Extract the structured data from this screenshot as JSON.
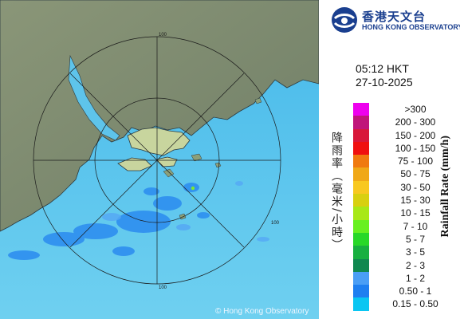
{
  "logo": {
    "name_cn": "香港天文台",
    "name_en": "HONG KONG OBSERVATORY"
  },
  "timestamp": {
    "time": "05:12 HKT",
    "date": "27-10-2025"
  },
  "legend": {
    "title_cn": "降雨率（毫米/小時）",
    "title_en": "Rainfall Rate (mm/h)",
    "items": [
      {
        "label": ">300",
        "color": "#ee00ee"
      },
      {
        "label": "200 - 300",
        "color": "#c0157a"
      },
      {
        "label": "150 - 200",
        "color": "#d8183a"
      },
      {
        "label": "100 - 150",
        "color": "#f01010"
      },
      {
        "label": "75 - 100",
        "color": "#f07a10"
      },
      {
        "label": "50 - 75",
        "color": "#f0a818"
      },
      {
        "label": "30 - 50",
        "color": "#f8c820"
      },
      {
        "label": "15 - 30",
        "color": "#d8d010"
      },
      {
        "label": "10 - 15",
        "color": "#a8e818"
      },
      {
        "label": "7 - 10",
        "color": "#68f020"
      },
      {
        "label": "5 - 7",
        "color": "#28d828"
      },
      {
        "label": "3 - 5",
        "color": "#18b040"
      },
      {
        "label": "2 - 3",
        "color": "#108850"
      },
      {
        "label": "1 - 2",
        "color": "#4a9ef5"
      },
      {
        "label": "0.50 - 1",
        "color": "#1e7ff0"
      },
      {
        "label": "0.15 - 0.50",
        "color": "#0ac6f2"
      }
    ]
  },
  "map": {
    "range_ring_labels": [
      "100",
      "100",
      "100"
    ],
    "copyright": "© Hong Kong Observatory",
    "colors": {
      "sea": "#5fc8ec",
      "land": "#7d8a70",
      "hk": "#c6d39c"
    }
  }
}
